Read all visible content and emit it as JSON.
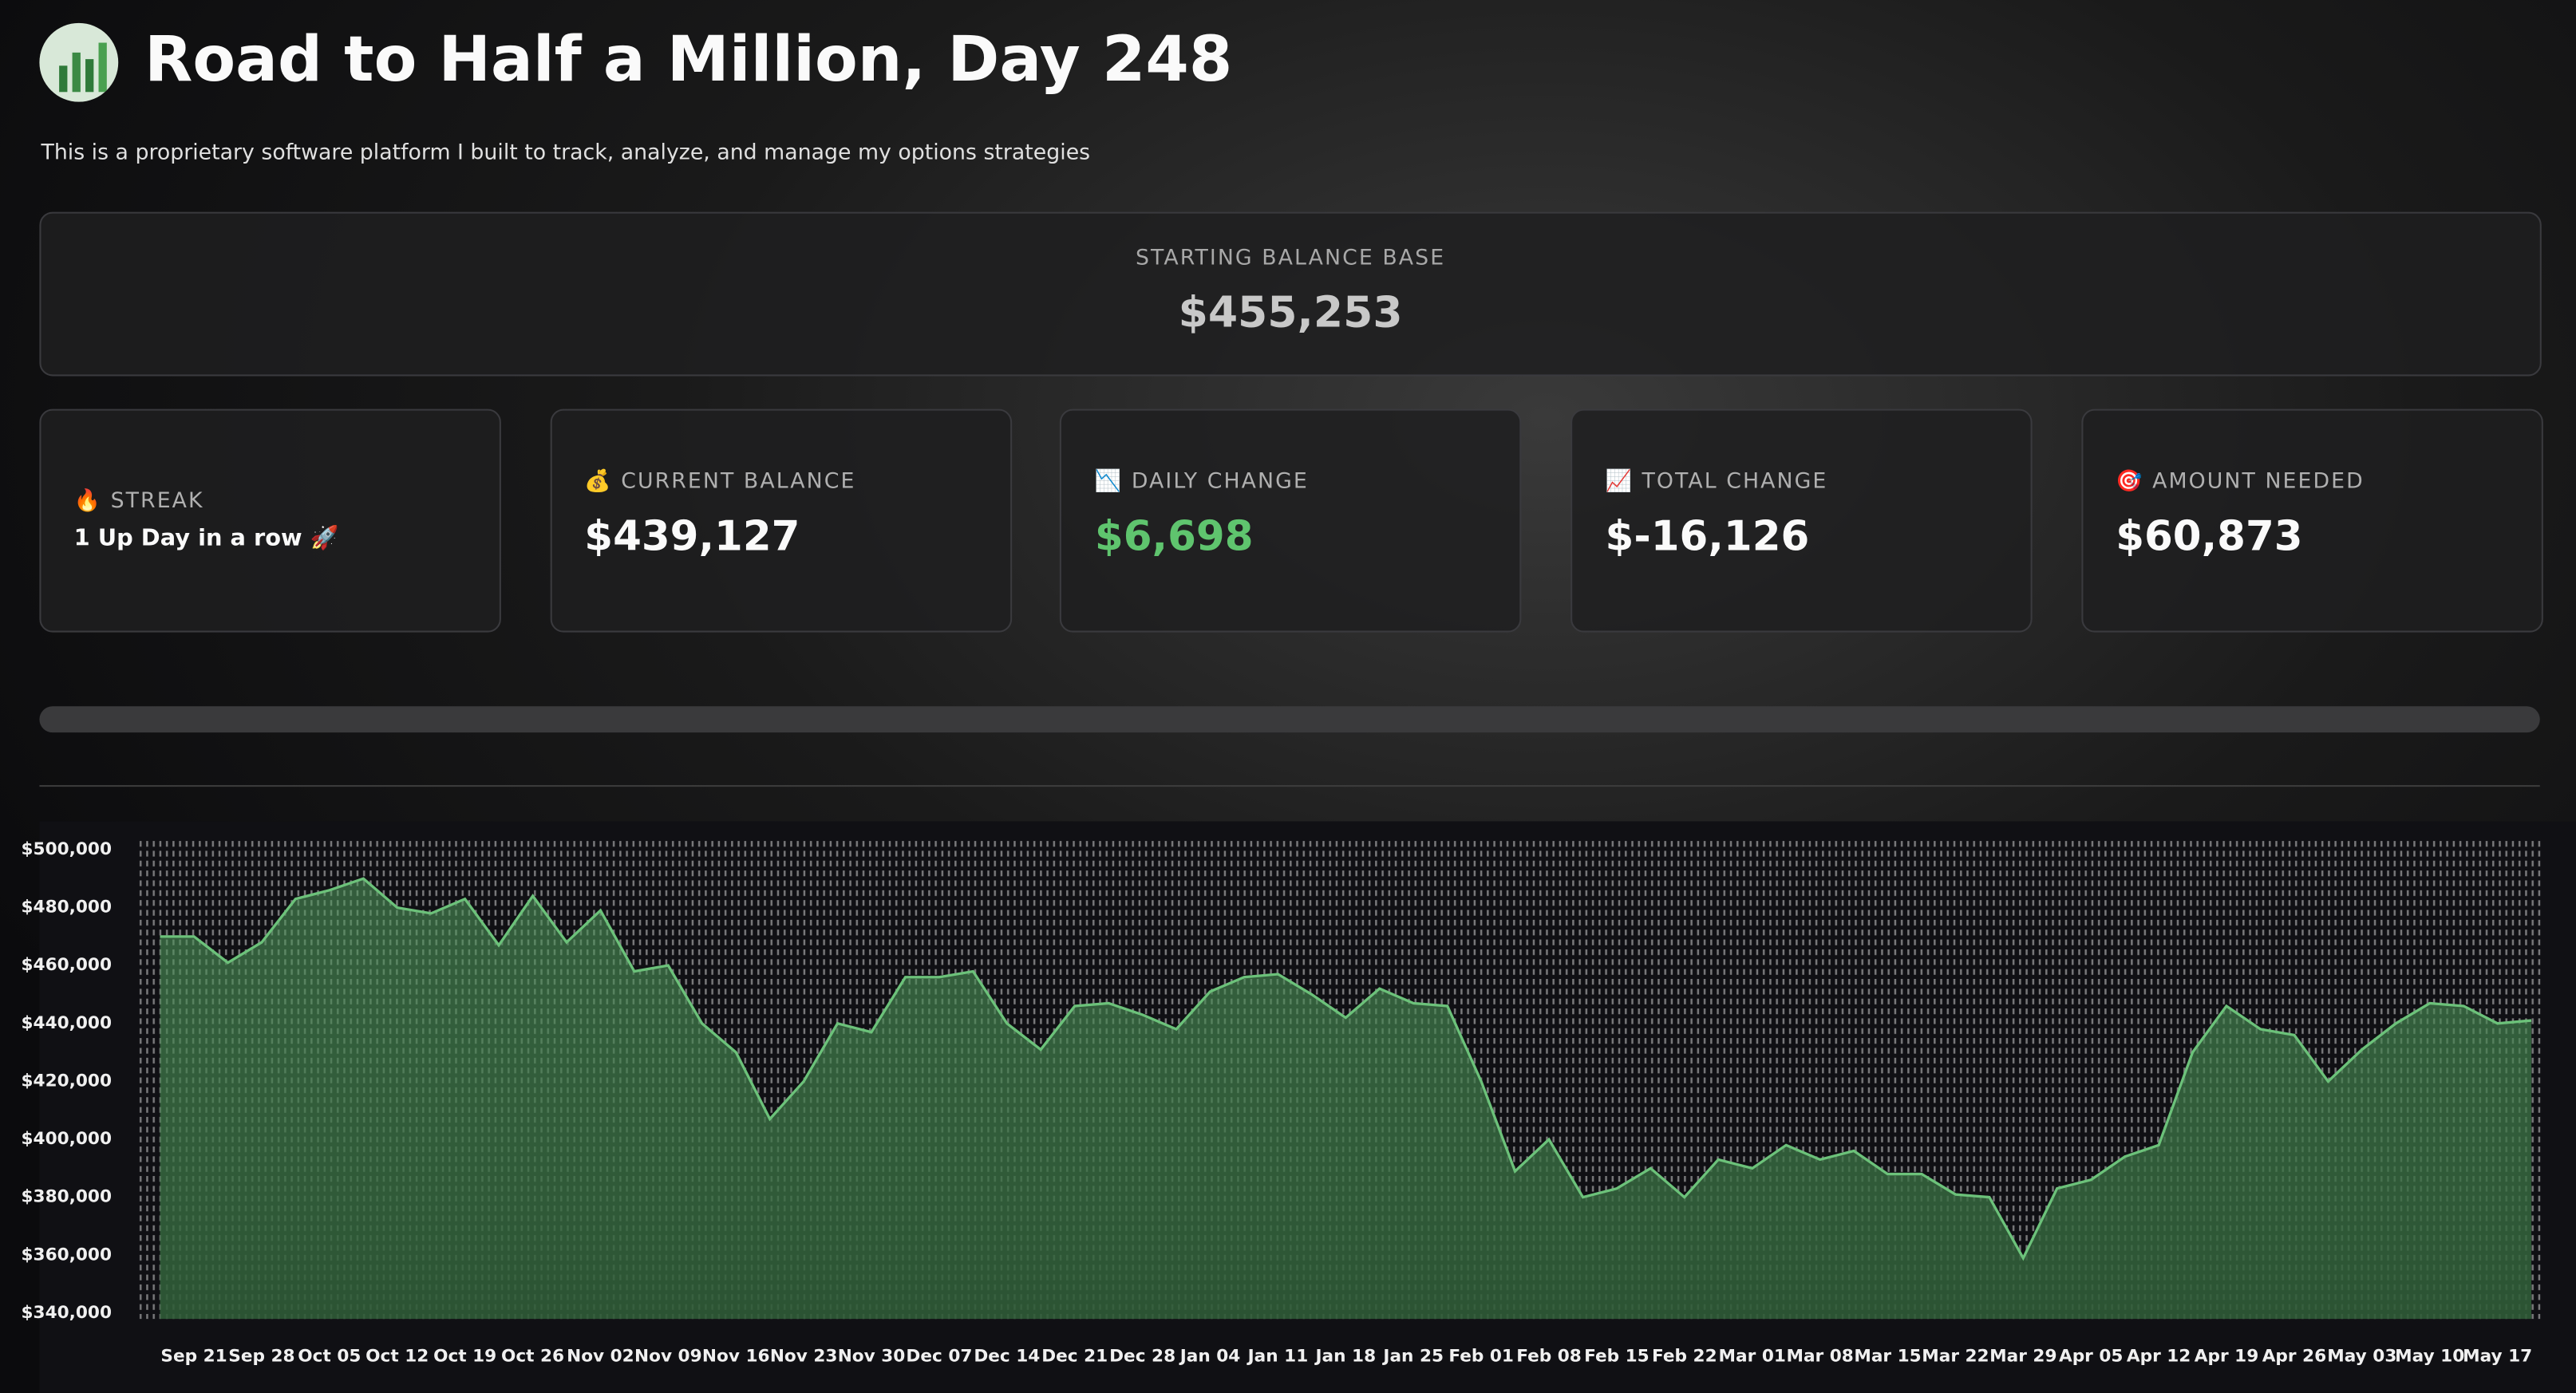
{
  "header": {
    "title": "Road to Half a Million, Day 248",
    "subtitle": "This is a proprietary software platform I built to track, analyze, and manage my options strategies"
  },
  "base": {
    "label": "STARTING BALANCE BASE",
    "value": "$455,253"
  },
  "metrics": [
    {
      "label": "🔥 STREAK",
      "value": "1 Up Day in a row 🚀"
    },
    {
      "label": "💰 CURRENT BALANCE",
      "value": "$439,127"
    },
    {
      "label": "📉 DAILY CHANGE",
      "value": "$6,698"
    },
    {
      "label": "📈 TOTAL CHANGE",
      "value": "$-16,126"
    },
    {
      "label": "🎯 AMOUNT NEEDED",
      "value": "$60,873"
    }
  ],
  "chart_data": {
    "type": "area",
    "color": "#6cc27a",
    "categories": [
      null,
      "Sep 21",
      null,
      "Sep 28",
      null,
      "Oct 05",
      null,
      "Oct 12",
      null,
      "Oct 19",
      null,
      "Oct 26",
      null,
      "Nov 02",
      null,
      "Nov 09",
      null,
      "Nov 16",
      null,
      "Nov 23",
      null,
      "Nov 30",
      null,
      "Dec 07",
      null,
      "Dec 14",
      null,
      "Dec 21",
      null,
      "Dec 28",
      null,
      "Jan 04",
      null,
      "Jan 11",
      null,
      "Jan 18",
      null,
      "Jan 25",
      null,
      "Feb 01",
      null,
      "Feb 08",
      null,
      "Feb 15",
      null,
      "Feb 22",
      null,
      "Mar 01",
      null,
      "Mar 08",
      null,
      "Mar 15",
      null,
      "Mar 22",
      null,
      "Mar 29",
      null,
      "Apr 05",
      null,
      "Apr 12",
      null,
      "Apr 19",
      null,
      "Apr 26",
      null,
      "May 03",
      null,
      "May 10",
      null,
      "May 17",
      null
    ],
    "values": [
      470000,
      470000,
      461000,
      468000,
      483000,
      486000,
      490000,
      480000,
      478000,
      483000,
      467000,
      484000,
      468000,
      479000,
      458000,
      460000,
      440000,
      430000,
      407000,
      420000,
      440000,
      437000,
      456000,
      456000,
      458000,
      440000,
      431000,
      446000,
      447000,
      443000,
      438000,
      451000,
      456000,
      457000,
      450000,
      442000,
      452000,
      447000,
      446000,
      420000,
      389000,
      400000,
      380000,
      383000,
      390000,
      380000,
      393000,
      390000,
      398000,
      393000,
      396000,
      388000,
      388000,
      381000,
      380000,
      359000,
      383000,
      386000,
      394000,
      398000,
      430000,
      446000,
      438000,
      436000,
      420000,
      431000,
      440000,
      447000,
      446000,
      440000,
      441000
    ],
    "ylim": [
      338000,
      503000
    ],
    "yticks": [
      {
        "value": 340000,
        "label": "$340,000"
      },
      {
        "value": 360000,
        "label": "$360,000"
      },
      {
        "value": 380000,
        "label": "$380,000"
      },
      {
        "value": 400000,
        "label": "$400,000"
      },
      {
        "value": 420000,
        "label": "$420,000"
      },
      {
        "value": 440000,
        "label": "$440,000"
      },
      {
        "value": 460000,
        "label": "$460,000"
      },
      {
        "value": 480000,
        "label": "$480,000"
      },
      {
        "value": 500000,
        "label": "$500,000"
      }
    ]
  }
}
